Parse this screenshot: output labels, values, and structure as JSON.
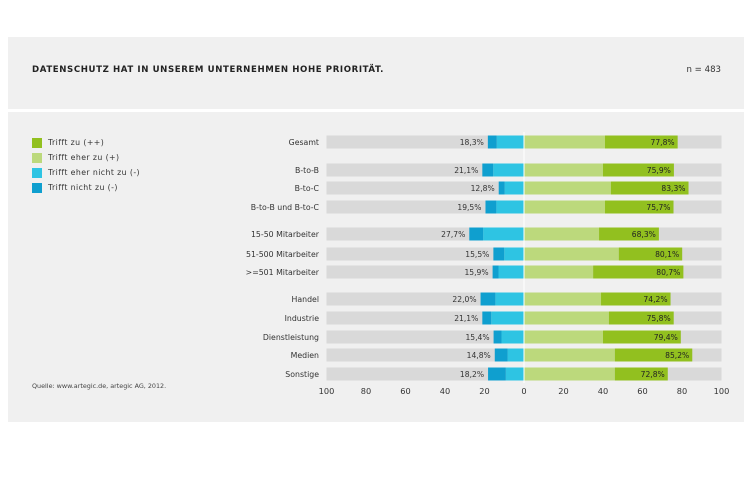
{
  "header": {
    "title": "DATENSCHUTZ HAT IN UNSEREM UNTERNEHMEN HOHE PRIORITÄT.",
    "n_label": "n = 483"
  },
  "source": "Quelle: www.artegic.de, artegic AG, 2012.",
  "colors": {
    "very_agree": "#92c01f",
    "agree": "#bcd97c",
    "disagree": "#2ec4e3",
    "strong_disagree": "#0f9fcf",
    "track": "#d9d9d9"
  },
  "legend": [
    {
      "label": "Trifft zu (++)",
      "color": "#92c01f"
    },
    {
      "label": "Trifft eher zu (+)",
      "color": "#bcd97c"
    },
    {
      "label": "Trifft eher nicht zu (-)",
      "color": "#2ec4e3"
    },
    {
      "label": "Trifft nicht zu (-)",
      "color": "#0f9fcf"
    }
  ],
  "chart_data": {
    "type": "bar",
    "orientation": "horizontal-diverging",
    "categories": [
      "Gesamt",
      "B-to-B",
      "B-to-C",
      "B-to-B und B-to-C",
      "15-50 Mitarbeiter",
      "51-500 Mitarbeiter",
      ">=501 Mitarbeiter",
      "Handel",
      "Industrie",
      "Dienstleistung",
      "Medien",
      "Sonstige"
    ],
    "groups": [
      [
        0
      ],
      [
        1,
        2,
        3
      ],
      [
        4,
        5,
        6
      ],
      [
        7,
        8,
        9,
        10,
        11
      ]
    ],
    "series": [
      {
        "name": "Trifft nicht zu (-)",
        "values": [
          4.5,
          5.5,
          3.0,
          5.5,
          7.0,
          5.5,
          3.0,
          7.5,
          4.5,
          4.0,
          6.5,
          9.0
        ]
      },
      {
        "name": "Trifft eher nicht zu (-)",
        "values": [
          13.8,
          15.6,
          9.8,
          14.0,
          20.7,
          10.0,
          12.9,
          14.5,
          16.6,
          11.4,
          8.3,
          9.2
        ]
      },
      {
        "name": "Trifft eher zu (+)",
        "values": [
          41.0,
          40.0,
          44.0,
          41.0,
          38.0,
          48.0,
          35.0,
          39.0,
          43.0,
          40.0,
          46.0,
          46.0
        ]
      },
      {
        "name": "Trifft zu (++)",
        "values": [
          36.8,
          35.9,
          39.3,
          34.7,
          30.3,
          32.1,
          45.7,
          35.2,
          32.8,
          39.4,
          39.2,
          26.8
        ]
      }
    ],
    "negative_totals": [
      "18,3%",
      "21,1%",
      "12,8%",
      "19,5%",
      "27,7%",
      "15,5%",
      "15,9%",
      "22,0%",
      "21,1%",
      "15,4%",
      "14,8%",
      "18,2%"
    ],
    "positive_totals": [
      "77,8%",
      "75,9%",
      "83,3%",
      "75,7%",
      "68,3%",
      "80,1%",
      "80,7%",
      "74,2%",
      "75,8%",
      "79,4%",
      "85,2%",
      "72,8%"
    ],
    "x_ticks": [
      "100",
      "80",
      "60",
      "40",
      "20",
      "0",
      "20",
      "40",
      "60",
      "80",
      "100"
    ],
    "xlim": [
      -100,
      100
    ]
  }
}
